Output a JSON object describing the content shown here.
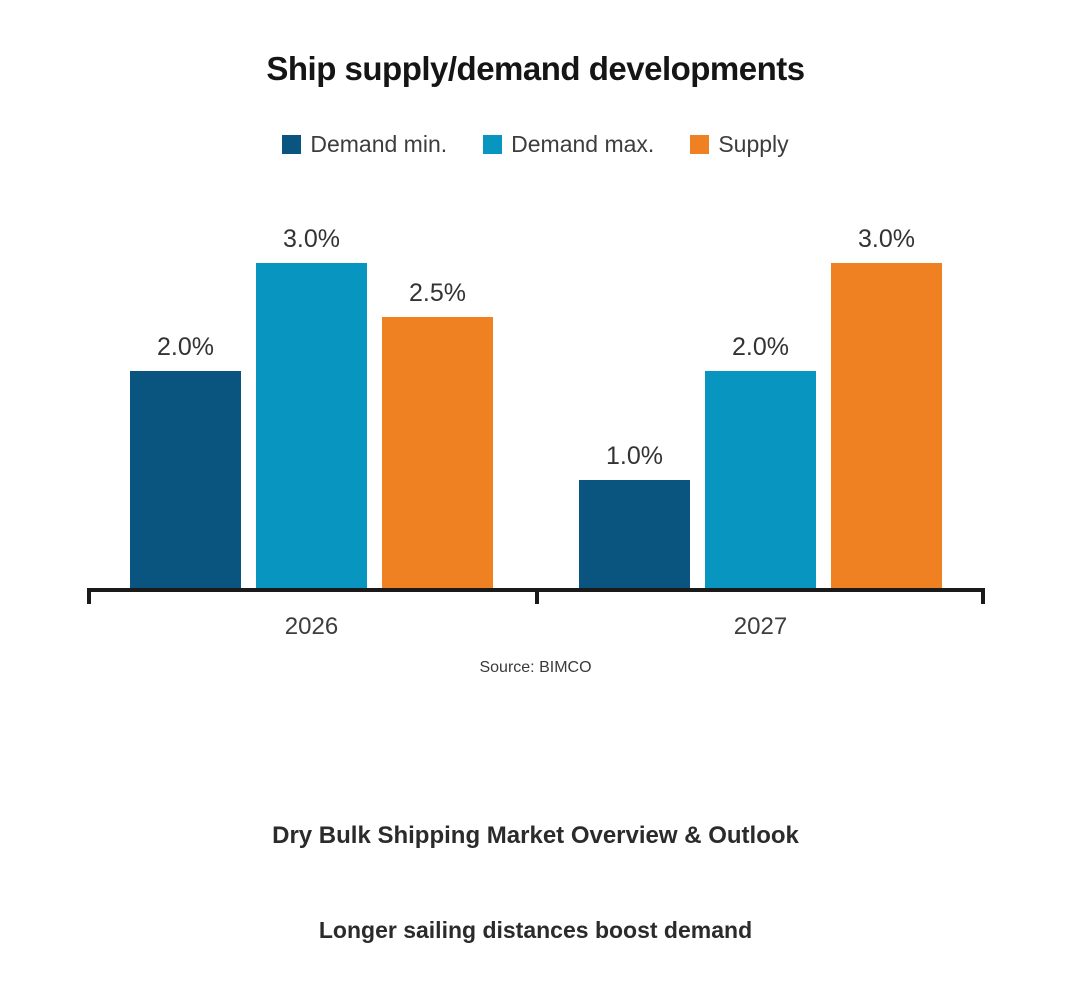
{
  "chart": {
    "title": "Ship supply/demand developments",
    "source": "Source: BIMCO"
  },
  "chart_data": {
    "type": "bar",
    "title": "Ship supply/demand developments",
    "categories": [
      "2026",
      "2027"
    ],
    "series": [
      {
        "name": "Demand min.",
        "color": "#0A5580",
        "values": [
          2.0,
          1.0
        ],
        "labels": [
          "2.0%",
          "1.0%"
        ]
      },
      {
        "name": "Demand max.",
        "color": "#0895BF",
        "values": [
          3.0,
          2.0
        ],
        "labels": [
          "3.0%",
          "2.0%"
        ]
      },
      {
        "name": "Supply",
        "color": "#EF8122",
        "values": [
          2.5,
          3.0
        ],
        "labels": [
          "2.5%",
          "3.0%"
        ]
      }
    ],
    "xlabel": "",
    "ylabel": "",
    "ylim": [
      0,
      3.0
    ],
    "grid": false,
    "y_axis_visible": false,
    "legend_position": "top",
    "axis_color": "#1a1a1a",
    "source": "Source: BIMCO"
  },
  "footer": {
    "heading1": "Dry Bulk Shipping Market Overview & Outlook",
    "heading2": "Longer sailing distances boost demand"
  }
}
